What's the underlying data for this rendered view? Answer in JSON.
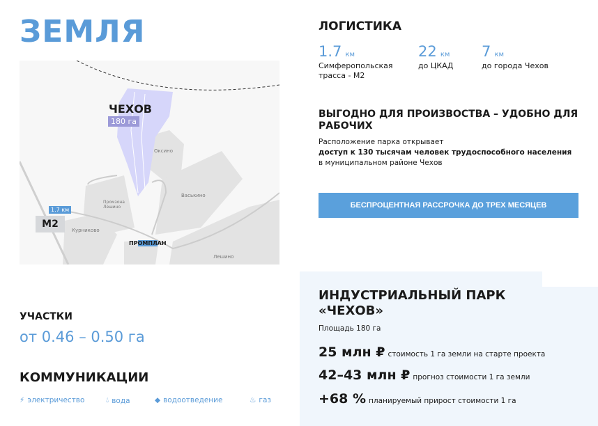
{
  "title": "ЗЕМЛЯ",
  "map": {
    "city": "ЧЕХОВ",
    "area": "180 га",
    "highway": "М2",
    "distance": "1.7 км",
    "brand": "ПРОМПЛАН",
    "places": [
      "Оксино",
      "Промзона Лешино",
      "Васькино",
      "Курниково",
      "Лешино"
    ]
  },
  "logistics": {
    "title": "ЛОГИСТИКА",
    "items": [
      {
        "value": "1.7",
        "unit": "км",
        "desc1": "Симферопольская",
        "desc2": "трасса - М2"
      },
      {
        "value": "22",
        "unit": "км",
        "desc1": "до ЦКАД",
        "desc2": ""
      },
      {
        "value": "7",
        "unit": "км",
        "desc1": "до города Чехов",
        "desc2": ""
      }
    ]
  },
  "benefit": {
    "title": "ВЫГОДНО ДЛЯ ПРОИЗВОСТВА – УДОБНО ДЛЯ РАБОЧИХ",
    "line1": "Расположение парка открывает",
    "line2": "доступ к 130 тысячам человек трудоспособного населения",
    "line3": "в муниципальном районе Чехов"
  },
  "cta": "БЕСПРОЦЕНТНАЯ РАССРОЧКА ДО ТРЕХ МЕСЯЦЕВ",
  "park": {
    "title1": "ИНДУСТРИАЛЬНЫЙ ПАРК",
    "title2": "«ЧЕХОВ»",
    "area": "Площадь 180 га",
    "rows": [
      {
        "value": "25 млн ₽",
        "text": "стоимость 1 га земли на старте проекта"
      },
      {
        "value": "42–43 млн ₽",
        "text": "прогноз стоимости 1 га земли"
      },
      {
        "value": "+68 %",
        "text": "планируемый прирост стоимости 1 га"
      }
    ]
  },
  "plots": {
    "title": "УЧАСТКИ",
    "value": "от 0.46 – 0.50 га"
  },
  "utilities": {
    "title": "КОММУНИКАЦИИ",
    "items": [
      {
        "icon": "lightning-icon",
        "label": "электричество"
      },
      {
        "icon": "drop-icon",
        "label": "вода"
      },
      {
        "icon": "pipe-icon",
        "label": "водоотведение"
      },
      {
        "icon": "gas-flame-icon",
        "label": "газ"
      }
    ]
  },
  "colors": {
    "accent": "#5a9bd8",
    "panel": "#f0f6fc",
    "parcel": "#9c9ad8"
  }
}
